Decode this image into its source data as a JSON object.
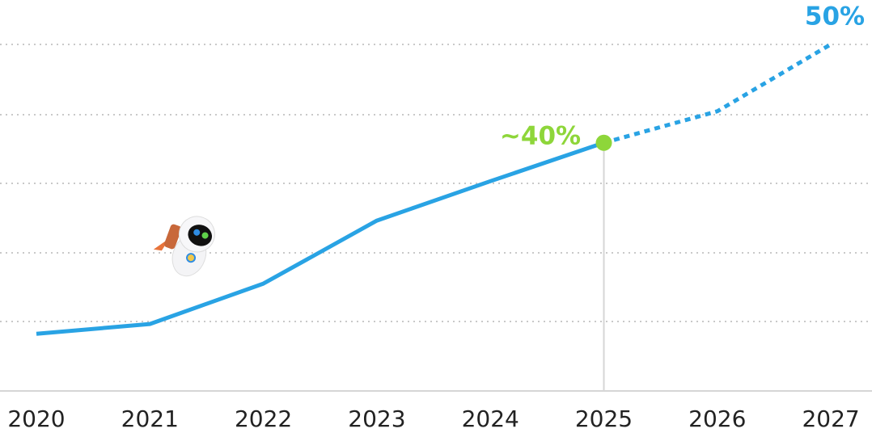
{
  "chart_data": {
    "type": "line",
    "categories": [
      "2020",
      "2021",
      "2022",
      "2023",
      "2024",
      "2025",
      "2026",
      "2027"
    ],
    "series": [
      {
        "color": "#29a3e4",
        "dash": false,
        "values": [
          20.6,
          21.6,
          25.7,
          32.1,
          36.1,
          40,
          null,
          null
        ]
      },
      {
        "color": "#29a3e4",
        "dash": true,
        "values": [
          null,
          null,
          null,
          null,
          null,
          40,
          43.2,
          50
        ]
      }
    ],
    "ylim": [
      14.8,
      54.5
    ],
    "annotations": [
      {
        "text": "~40%",
        "color": "#8ed63a"
      },
      {
        "text": "50%",
        "color": "#29a3e4"
      }
    ]
  }
}
